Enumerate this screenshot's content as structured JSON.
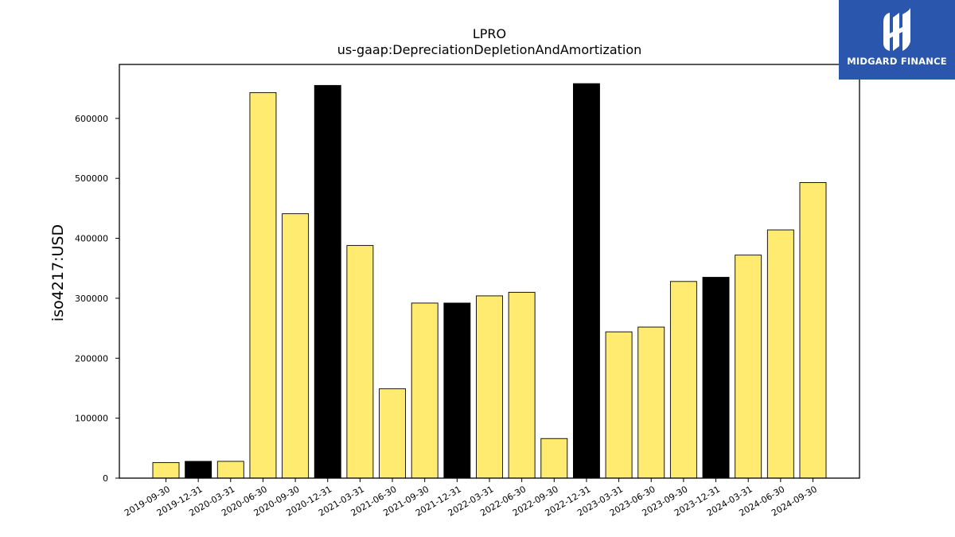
{
  "chart_data": {
    "type": "bar",
    "title": "LPRO",
    "subtitle": "us-gaap:DepreciationDepletionAndAmortization",
    "xlabel": "",
    "ylabel": "iso4217:USD",
    "ylim": [
      0,
      690000
    ],
    "yticks": [
      0,
      100000,
      200000,
      300000,
      400000,
      500000,
      600000
    ],
    "categories": [
      "2019-09-30",
      "2019-12-31",
      "2020-03-31",
      "2020-06-30",
      "2020-09-30",
      "2020-12-31",
      "2021-03-31",
      "2021-06-30",
      "2021-09-30",
      "2021-12-31",
      "2022-03-31",
      "2022-06-30",
      "2022-09-30",
      "2022-12-31",
      "2023-03-31",
      "2023-06-30",
      "2023-09-30",
      "2023-12-31",
      "2024-03-31",
      "2024-06-30",
      "2024-09-30"
    ],
    "values": [
      26000,
      28000,
      28000,
      643000,
      441000,
      655000,
      388000,
      149000,
      292000,
      292000,
      304000,
      310000,
      66000,
      658000,
      244000,
      252000,
      328000,
      335000,
      372000,
      414000,
      493000
    ],
    "bar_colors": [
      "#ffeb70",
      "#000000",
      "#ffeb70",
      "#ffeb70",
      "#ffeb70",
      "#000000",
      "#ffeb70",
      "#ffeb70",
      "#ffeb70",
      "#000000",
      "#ffeb70",
      "#ffeb70",
      "#ffeb70",
      "#000000",
      "#ffeb70",
      "#ffeb70",
      "#ffeb70",
      "#000000",
      "#ffeb70",
      "#ffeb70",
      "#ffeb70"
    ],
    "grid": false,
    "legend": "none"
  },
  "logo": {
    "text": "MIDGARD FINANCE",
    "background": "#2a57ad",
    "color": "#ffffff"
  }
}
